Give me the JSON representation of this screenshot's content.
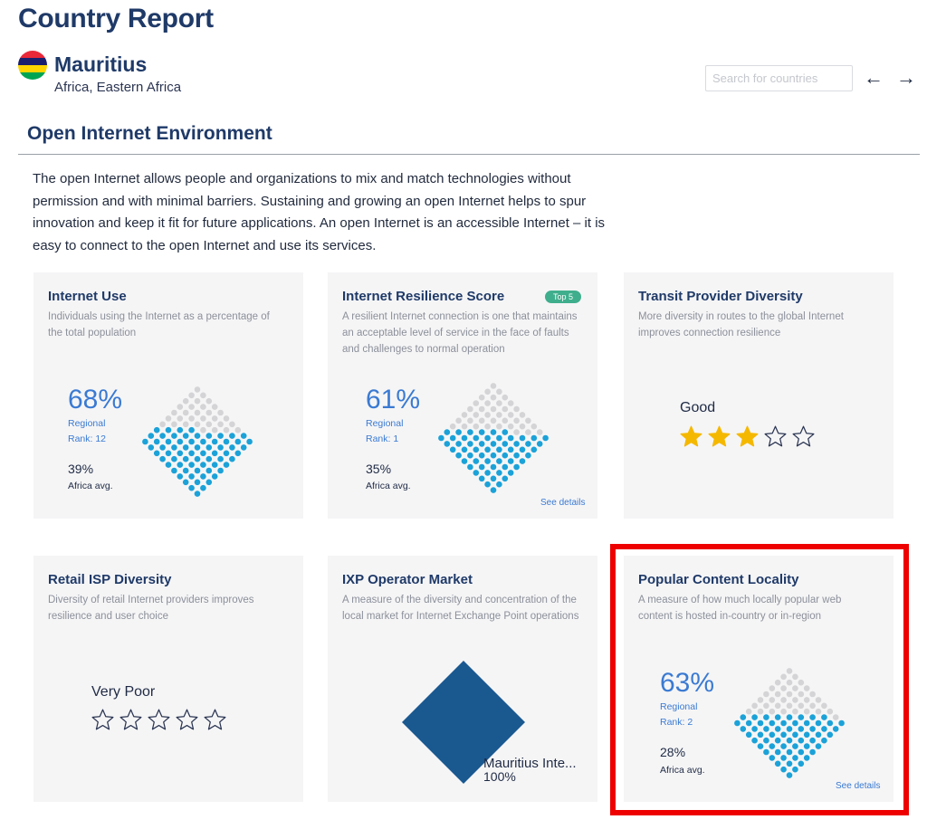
{
  "header": {
    "page_title": "Country Report",
    "country_name": "Mauritius",
    "country_region": "Africa, Eastern Africa",
    "flag_colors": [
      "#EA2839",
      "#1A206D",
      "#FFD500",
      "#00A551"
    ]
  },
  "search": {
    "placeholder": "Search for countries"
  },
  "nav": {
    "prev": "←",
    "next": "→"
  },
  "section": {
    "title": "Open Internet Environment",
    "intro": "The open Internet allows people and organizations to mix and match technologies without permission and with minimal barriers. Sustaining and growing an open Internet helps to spur innovation and keep it fit for future applications. An open Internet is an accessible Internet – it is easy to connect to the open Internet and use its services."
  },
  "colors": {
    "accent": "#3a7ad2",
    "dot_fill": "#1ba2d8",
    "dot_empty": "#d4d4d6",
    "badge": "#3fae8c",
    "ixp_fill": "#1a5890",
    "highlight": "#ee0000"
  },
  "cards": {
    "internet_use": {
      "title": "Internet Use",
      "desc": "Individuals using the Internet as a percentage of the total population",
      "value": "68%",
      "regional": "Regional",
      "rank": "Rank: 12",
      "avg_value": "39%",
      "avg_label": "Africa avg.",
      "fill_fraction": 0.68
    },
    "resilience": {
      "title": "Internet Resilience Score",
      "badge": "Top 5",
      "desc": "A resilient Internet connection is one that maintains an acceptable level of service in the face of faults and challenges to normal operation",
      "value": "61%",
      "regional": "Regional",
      "rank": "Rank: 1",
      "avg_value": "35%",
      "avg_label": "Africa avg.",
      "see_details": "See details",
      "fill_fraction": 0.61
    },
    "transit": {
      "title": "Transit Provider Diversity",
      "desc": "More diversity in routes to the global Internet improves connection resilience",
      "rating_word": "Good",
      "stars_filled": 3,
      "stars_total": 5
    },
    "retail_isp": {
      "title": "Retail ISP Diversity",
      "desc": "Diversity of retail Internet providers improves resilience and user choice",
      "rating_word": "Very Poor",
      "stars_filled": 0,
      "stars_total": 5
    },
    "ixp": {
      "title": "IXP Operator Market",
      "desc": "A measure of the diversity and concentration of the local market for Internet Exchange Point operations",
      "operator_label": "Mauritius Inte...",
      "operator_share": "100%"
    },
    "content_locality": {
      "title": "Popular Content Locality",
      "desc": "A measure of how much locally popular web content is hosted in-country or in-region",
      "value": "63%",
      "regional": "Regional",
      "rank": "Rank: 2",
      "avg_value": "28%",
      "avg_label": "Africa avg.",
      "see_details": "See details",
      "fill_fraction": 0.63
    }
  }
}
